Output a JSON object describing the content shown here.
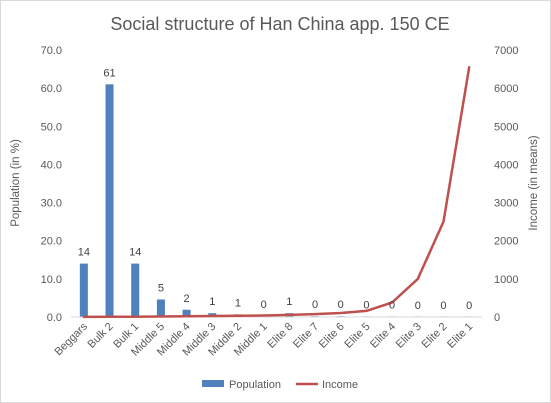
{
  "chart_data": {
    "type": "bar",
    "title": "Social structure of Han China app. 150 CE",
    "categories": [
      "Beggars",
      "Bulk 2",
      "Bulk 1",
      "Middle 5",
      "Middle 4",
      "Middle 3",
      "Middle 2",
      "Middle 1",
      "Elite 8",
      "Elite 7",
      "Elite 6",
      "Elite 5",
      "Elite 4",
      "Elite 3",
      "Elite 2",
      "Elite 1"
    ],
    "series": [
      {
        "name": "Population",
        "type": "bar",
        "axis": "left",
        "color": "#4f81bd",
        "values": [
          14,
          61,
          14,
          4.6,
          1.9,
          1.0,
          0.7,
          0.2,
          1.0,
          0.2,
          0.2,
          0.1,
          0.1,
          0.05,
          0.03,
          0.02
        ],
        "data_labels": [
          "14",
          "61",
          "14",
          "5",
          "2",
          "1",
          "1",
          "0",
          "1",
          "0",
          "0",
          "0",
          "0",
          "0",
          "0",
          "0"
        ]
      },
      {
        "name": "Income",
        "type": "line",
        "axis": "right",
        "color": "#c0504d",
        "values": [
          3,
          5,
          8,
          12,
          18,
          25,
          32,
          40,
          55,
          75,
          105,
          160,
          380,
          1000,
          2500,
          6550
        ]
      }
    ],
    "ylabel": "Population (in %)",
    "y2label": "Income (in means)",
    "ylim": [
      0,
      70
    ],
    "y2lim": [
      0,
      7000
    ],
    "yticks": [
      "0.0",
      "10.0",
      "20.0",
      "30.0",
      "40.0",
      "50.0",
      "60.0",
      "70.0"
    ],
    "y2ticks": [
      "0",
      "1000",
      "2000",
      "3000",
      "4000",
      "5000",
      "6000",
      "7000"
    ],
    "legend_position": "bottom",
    "grid": false
  }
}
